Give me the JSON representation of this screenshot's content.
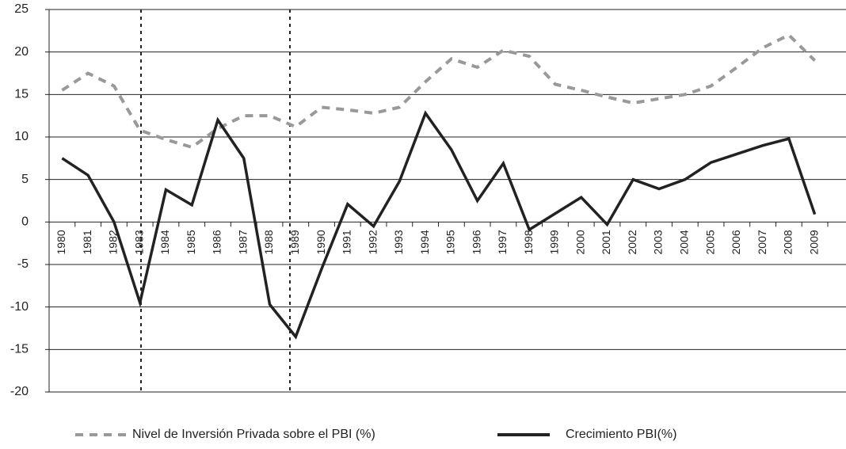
{
  "chart_data": {
    "type": "line",
    "categories": [
      "1980",
      "1981",
      "1982",
      "1983",
      "1984",
      "1985",
      "1986",
      "1987",
      "1988",
      "1989",
      "1990",
      "1991",
      "1992",
      "1993",
      "1994",
      "1995",
      "1996",
      "1997",
      "1998",
      "1999",
      "2000",
      "2001",
      "2002",
      "2003",
      "2004",
      "2005",
      "2006",
      "2007",
      "2008",
      "2009"
    ],
    "series": [
      {
        "name": "Nivel de Inversión Privada sobre el PBI (%)",
        "color": "#999999",
        "dash": true,
        "values": [
          15.5,
          17.5,
          16,
          10.8,
          9.7,
          8.8,
          11,
          12.5,
          12.5,
          11.2,
          13.5,
          13.2,
          12.8,
          13.5,
          16.5,
          19.2,
          18.2,
          20.2,
          19.5,
          16.2,
          15.5,
          14.7,
          14,
          14.5,
          15,
          16,
          18.2,
          20.5,
          22,
          19
        ]
      },
      {
        "name": "Crecimiento PBI(%)",
        "color": "#222222",
        "dash": false,
        "values": [
          7.5,
          5.5,
          0,
          -9.5,
          3.8,
          2,
          12,
          7.5,
          -9.7,
          -13.5,
          -5.5,
          2.1,
          -0.5,
          4.8,
          12.8,
          8.5,
          2.5,
          6.9,
          -0.9,
          1,
          2.9,
          -0.3,
          5,
          3.9,
          5,
          7,
          8,
          9,
          9.8,
          0.9
        ]
      }
    ],
    "ylim": [
      -20,
      25
    ],
    "yticks": [
      -20,
      -15,
      -10,
      -5,
      0,
      5,
      10,
      15,
      20,
      25
    ],
    "grid": true,
    "legend": "bottom"
  }
}
